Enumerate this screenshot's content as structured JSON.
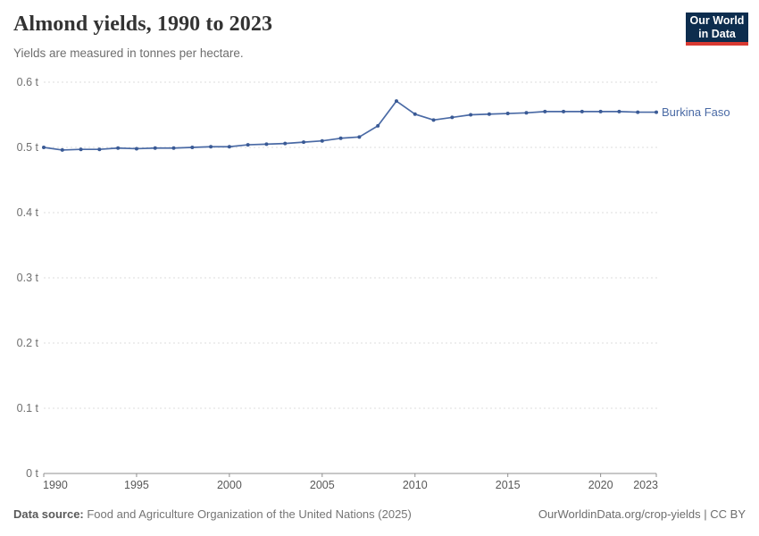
{
  "header": {
    "title": "Almond yields, 1990 to 2023",
    "subtitle": "Yields are measured in tonnes per hectare."
  },
  "logo": {
    "line1": "Our World",
    "line2": "in Data",
    "bg_color": "#0d2d4e",
    "accent_color": "#d93a32"
  },
  "chart_data": {
    "type": "line",
    "title": "Almond yields, 1990 to 2023",
    "ylabel": "tonnes per hectare",
    "xlim": [
      1990,
      2023
    ],
    "ylim": [
      0,
      0.6
    ],
    "x_ticks": [
      1990,
      1995,
      2000,
      2005,
      2010,
      2015,
      2020,
      2023
    ],
    "y_ticks": [
      0,
      0.1,
      0.2,
      0.3,
      0.4,
      0.5,
      0.6
    ],
    "y_unit": " t",
    "grid": "dashed-horizontal",
    "series": [
      {
        "name": "Burkina Faso",
        "color": "#4a6aa5",
        "marker_color": "#3a5a95",
        "x": [
          1990,
          1991,
          1992,
          1993,
          1994,
          1995,
          1996,
          1997,
          1998,
          1999,
          2000,
          2001,
          2002,
          2003,
          2004,
          2005,
          2006,
          2007,
          2008,
          2009,
          2010,
          2011,
          2012,
          2013,
          2014,
          2015,
          2016,
          2017,
          2018,
          2019,
          2020,
          2021,
          2022,
          2023
        ],
        "values": [
          0.5,
          0.496,
          0.497,
          0.497,
          0.499,
          0.498,
          0.499,
          0.499,
          0.5,
          0.501,
          0.501,
          0.504,
          0.505,
          0.506,
          0.508,
          0.51,
          0.514,
          0.516,
          0.533,
          0.571,
          0.551,
          0.542,
          0.546,
          0.55,
          0.551,
          0.552,
          0.553,
          0.555,
          0.555,
          0.555,
          0.555,
          0.555,
          0.554,
          0.554
        ]
      }
    ],
    "colors": {
      "gridline": "#dedede",
      "axis": "#8f8f8f",
      "x_tick_label": "#585858",
      "y_tick_label": "#707070"
    }
  },
  "footer": {
    "source_label": "Data source:",
    "source_text": " Food and Agriculture Organization of the United Nations (2025)",
    "credit": "OurWorldinData.org/crop-yields | CC BY"
  }
}
